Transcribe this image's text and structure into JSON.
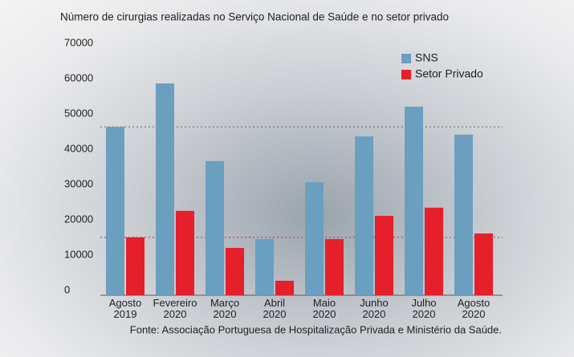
{
  "chart_data": {
    "type": "bar",
    "title": "Número de cirurgias realizadas no Serviço Nacional de Saúde e no setor privado",
    "categories": [
      "Agosto\n2019",
      "Fevereiro\n2020",
      "Março\n2020",
      "Abril\n2020",
      "Maio\n2020",
      "Junho\n2020",
      "Julho\n2020",
      "Agosto\n2020"
    ],
    "series": [
      {
        "name": "SNS",
        "color": "#6a9fc0",
        "values": [
          47700,
          60000,
          38000,
          15900,
          32000,
          45000,
          53400,
          45500
        ]
      },
      {
        "name": "Setor Privado",
        "color": "#e5202a",
        "values": [
          16400,
          23900,
          13400,
          4100,
          15900,
          22500,
          24800,
          17500
        ]
      }
    ],
    "ylim": [
      0,
      70000
    ],
    "yticks": [
      0,
      10000,
      20000,
      30000,
      40000,
      50000,
      60000,
      70000
    ],
    "grid": false,
    "legend": "top-right",
    "source": "Fonte: Associação Portuguesa de Hospitalização Privada e Ministério da Saúde."
  }
}
